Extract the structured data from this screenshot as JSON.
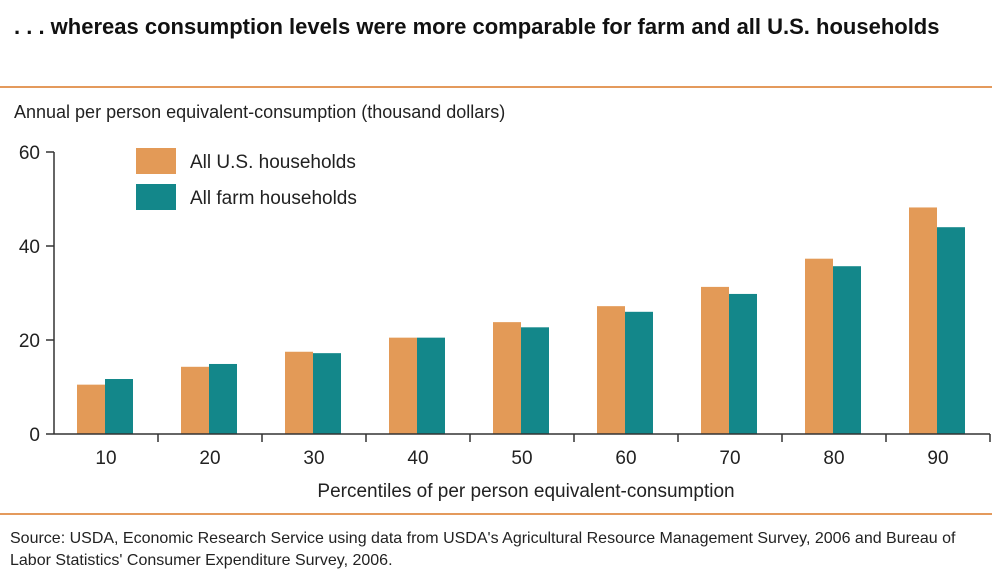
{
  "header": {
    "title": ". . . whereas consumption levels were more comparable for farm and all U.S. households"
  },
  "colors": {
    "accent_rule": "#e49a5c",
    "series_us": "#e39a57",
    "series_farm": "#13878a",
    "axis": "#333333"
  },
  "chart_data": {
    "type": "bar",
    "title": ". . . whereas consumption levels were more comparable for farm and all U.S. households",
    "ylabel": "Annual per person equivalent-consumption (thousand dollars)",
    "xlabel": "Percentiles of per person equivalent-consumption",
    "categories": [
      "10",
      "20",
      "30",
      "40",
      "50",
      "60",
      "70",
      "80",
      "90"
    ],
    "series": [
      {
        "name": "All U.S. households",
        "values": [
          10.5,
          14.3,
          17.5,
          20.5,
          23.8,
          27.2,
          31.3,
          37.3,
          48.2
        ]
      },
      {
        "name": "All farm households",
        "values": [
          11.7,
          14.9,
          17.2,
          20.5,
          22.7,
          26.0,
          29.8,
          35.7,
          44.0
        ]
      }
    ],
    "ylim": [
      0,
      60
    ],
    "yticks": [
      "0",
      "20",
      "40",
      "60"
    ],
    "grid": false,
    "legend_position": "top-left"
  },
  "footer": {
    "source": "Source:  USDA, Economic Research Service using data from USDA's Agricultural Resource Management Survey, 2006 and Bureau of Labor Statistics' Consumer Expenditure Survey, 2006."
  }
}
